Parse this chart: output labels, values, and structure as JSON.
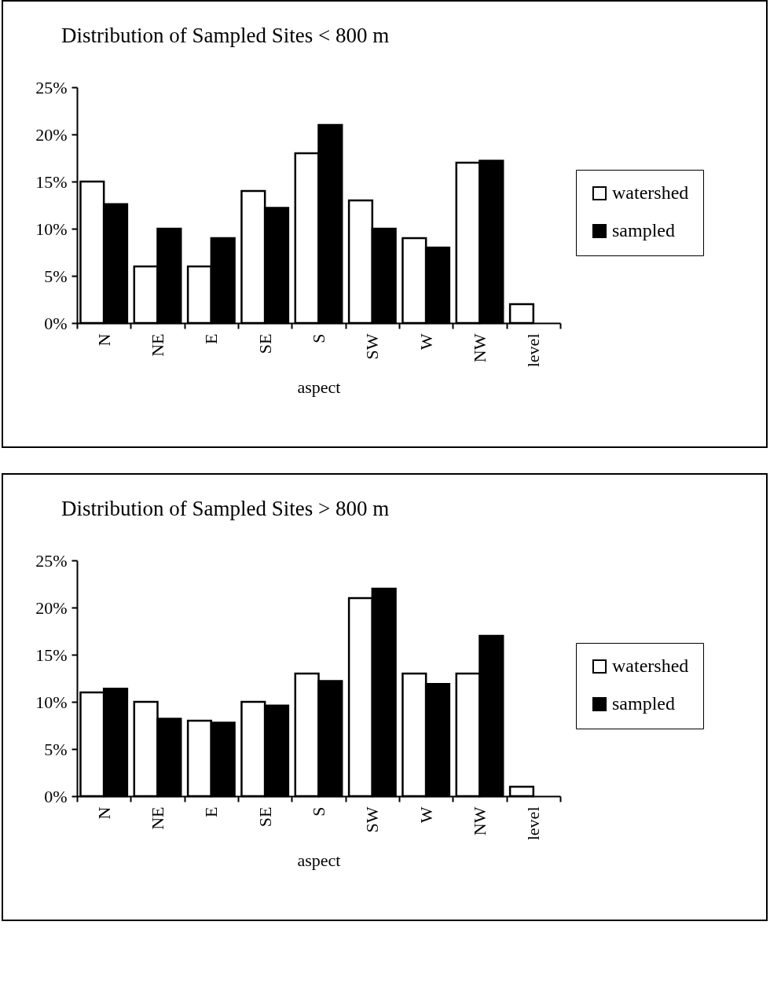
{
  "chart_data": [
    {
      "type": "bar",
      "title": "Distribution of Sampled Sites < 800 m",
      "xlabel": "aspect",
      "categories": [
        "N",
        "NE",
        "E",
        "SE",
        "S",
        "SW",
        "W",
        "NW",
        "level"
      ],
      "legend": "right",
      "grid": false,
      "ylim": [
        0,
        25
      ],
      "yticks": [
        {
          "value": 0,
          "label": "0%"
        },
        {
          "value": 5,
          "label": "5%"
        },
        {
          "value": 10,
          "label": "10%"
        },
        {
          "value": 15,
          "label": "15%"
        },
        {
          "value": 20,
          "label": "20%"
        },
        {
          "value": 25,
          "label": "25%"
        }
      ],
      "series": [
        {
          "name": "watershed",
          "color": "#ffffff",
          "values": [
            15,
            6,
            6,
            14,
            18,
            13,
            9,
            17,
            2
          ]
        },
        {
          "name": "sampled",
          "color": "#000000",
          "values": [
            12.6,
            10,
            9,
            12.2,
            21,
            10,
            8,
            17.2,
            null
          ]
        }
      ]
    },
    {
      "type": "bar",
      "title": "Distribution of Sampled Sites > 800 m",
      "xlabel": "aspect",
      "categories": [
        "N",
        "NE",
        "E",
        "SE",
        "S",
        "SW",
        "W",
        "NW",
        "level"
      ],
      "legend": "right",
      "grid": false,
      "ylim": [
        0,
        25
      ],
      "yticks": [
        {
          "value": 0,
          "label": "0%"
        },
        {
          "value": 5,
          "label": "5%"
        },
        {
          "value": 10,
          "label": "10%"
        },
        {
          "value": 15,
          "label": "15%"
        },
        {
          "value": 20,
          "label": "20%"
        },
        {
          "value": 25,
          "label": "25%"
        }
      ],
      "series": [
        {
          "name": "watershed",
          "color": "#ffffff",
          "values": [
            11,
            10,
            8,
            10,
            13,
            21,
            13,
            13,
            1
          ]
        },
        {
          "name": "sampled",
          "color": "#000000",
          "values": [
            11.4,
            8.2,
            7.8,
            9.6,
            12.2,
            22,
            11.9,
            17,
            null
          ]
        }
      ]
    }
  ]
}
